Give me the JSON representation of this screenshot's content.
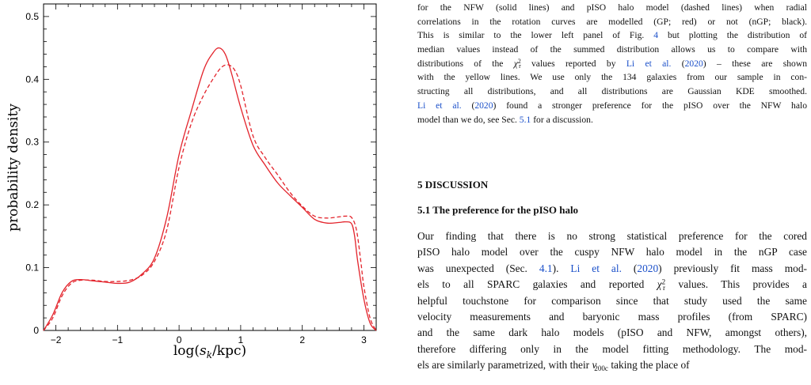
{
  "chart_data": {
    "type": "line",
    "xlabel": "log(s_k/kpc)",
    "ylabel": "probability density",
    "xlim": [
      -2.2,
      3.2
    ],
    "ylim": [
      0,
      0.52
    ],
    "x_ticks": [
      -2,
      -1,
      0,
      1,
      2,
      3
    ],
    "y_ticks": [
      0,
      0.1,
      0.2,
      0.3,
      0.4,
      0.5
    ],
    "x_tick_labels": [
      "−2",
      "−1",
      "0",
      "1",
      "2",
      "3"
    ],
    "y_tick_labels": [
      "0",
      "0.1",
      "0.2",
      "0.3",
      "0.4",
      "0.5"
    ],
    "grid": false,
    "series": [
      {
        "style": "solid",
        "color": "#e3232b",
        "x": [
          -2.2,
          -2.05,
          -1.9,
          -1.75,
          -1.6,
          -1.4,
          -1.2,
          -1.0,
          -0.8,
          -0.6,
          -0.4,
          -0.2,
          0.0,
          0.2,
          0.4,
          0.55,
          0.65,
          0.75,
          0.85,
          1.0,
          1.2,
          1.4,
          1.6,
          1.8,
          2.0,
          2.2,
          2.4,
          2.6,
          2.7,
          2.8,
          2.85,
          2.9,
          3.0,
          3.1,
          3.2
        ],
        "y": [
          0.0,
          0.025,
          0.06,
          0.078,
          0.081,
          0.079,
          0.077,
          0.075,
          0.077,
          0.09,
          0.115,
          0.18,
          0.28,
          0.35,
          0.415,
          0.442,
          0.45,
          0.44,
          0.41,
          0.355,
          0.295,
          0.263,
          0.235,
          0.215,
          0.196,
          0.177,
          0.171,
          0.172,
          0.173,
          0.17,
          0.15,
          0.11,
          0.05,
          0.012,
          0.0
        ]
      },
      {
        "style": "dashed",
        "color": "#e3232b",
        "x": [
          -2.2,
          -2.05,
          -1.9,
          -1.75,
          -1.6,
          -1.4,
          -1.2,
          -1.0,
          -0.8,
          -0.6,
          -0.4,
          -0.2,
          0.0,
          0.2,
          0.4,
          0.6,
          0.7,
          0.8,
          0.9,
          1.0,
          1.2,
          1.4,
          1.6,
          1.8,
          2.0,
          2.2,
          2.4,
          2.6,
          2.7,
          2.8,
          2.88,
          2.95,
          3.0,
          3.1,
          3.2
        ],
        "y": [
          0.0,
          0.02,
          0.055,
          0.075,
          0.08,
          0.08,
          0.078,
          0.078,
          0.08,
          0.088,
          0.11,
          0.16,
          0.26,
          0.33,
          0.375,
          0.408,
          0.42,
          0.423,
          0.415,
          0.39,
          0.31,
          0.275,
          0.248,
          0.22,
          0.198,
          0.182,
          0.179,
          0.181,
          0.182,
          0.18,
          0.16,
          0.11,
          0.07,
          0.02,
          0.0
        ]
      }
    ]
  },
  "caption_lines": [
    [
      {
        "t": "for the NFW (solid lines) and pISO halo model (dashed lines) when radial"
      }
    ],
    [
      {
        "t": "correlations in the rotation curves are modelled (GP; red) or not (nGP; black)."
      }
    ],
    [
      {
        "t": "This is similar to the lower left panel of Fig. "
      },
      {
        "t": "4",
        "c": "cite"
      },
      {
        "t": " but plotting the distribution of"
      }
    ],
    [
      {
        "t": "median values instead of the summed distribution allows us to compare with"
      }
    ],
    [
      {
        "t": "distributions of the "
      },
      {
        "t": "χ",
        "c": "math"
      },
      {
        "t": "2",
        "c": "sup"
      },
      {
        "t": "r",
        "c": "sub"
      },
      {
        "t": " values reported by "
      },
      {
        "t": "Li et al.",
        "c": "cite"
      },
      {
        "t": " ("
      },
      {
        "t": "2020",
        "c": "cite"
      },
      {
        "t": ") – these are shown"
      }
    ],
    [
      {
        "t": "with the yellow lines. We use only the 134 galaxies from our sample in con-"
      }
    ],
    [
      {
        "t": "structing all distributions, and all distributions are Gaussian KDE smoothed."
      }
    ],
    [
      {
        "t": "Li et al.",
        "c": "cite"
      },
      {
        "t": " ("
      },
      {
        "t": "2020",
        "c": "cite"
      },
      {
        "t": ") found a stronger preference for the pISO over the NFW halo"
      }
    ],
    [
      {
        "t": "model than we do, see Sec. "
      },
      {
        "t": "5.1",
        "c": "cite"
      },
      {
        "t": " for a discussion."
      }
    ]
  ],
  "section_heading": "5 DISCUSSION",
  "subsection_heading": "5.1 The preference for the pISO halo",
  "body_lines": [
    [
      {
        "t": "Our finding that there is no strong statistical preference for the cored"
      }
    ],
    [
      {
        "t": "pISO halo model over the cuspy NFW halo model in the nGP case"
      }
    ],
    [
      {
        "t": "was unexpected (Sec. "
      },
      {
        "t": "4.1",
        "c": "cite"
      },
      {
        "t": "). "
      },
      {
        "t": "Li et al.",
        "c": "cite"
      },
      {
        "t": " ("
      },
      {
        "t": "2020",
        "c": "cite"
      },
      {
        "t": ") previously fit mass mod-"
      }
    ],
    [
      {
        "t": "els to all SPARC galaxies and reported "
      },
      {
        "t": "χ",
        "c": "math"
      },
      {
        "t": "2",
        "c": "sup"
      },
      {
        "t": "r",
        "c": "sub"
      },
      {
        "t": " values. This provides a"
      }
    ],
    [
      {
        "t": "helpful touchstone for comparison since that study used the same"
      }
    ],
    [
      {
        "t": "velocity measurements and baryonic mass profiles (from SPARC)"
      }
    ],
    [
      {
        "t": "and the same dark halo models (pISO and NFW, amongst others),"
      }
    ],
    [
      {
        "t": "therefore differing only in the model fitting methodology. The mod-"
      }
    ],
    [
      {
        "t": "els are similarly parametrized, with their "
      },
      {
        "t": "v",
        "c": "math"
      },
      {
        "t": "200c",
        "c": "sub"
      },
      {
        "t": " taking the place of"
      }
    ]
  ]
}
